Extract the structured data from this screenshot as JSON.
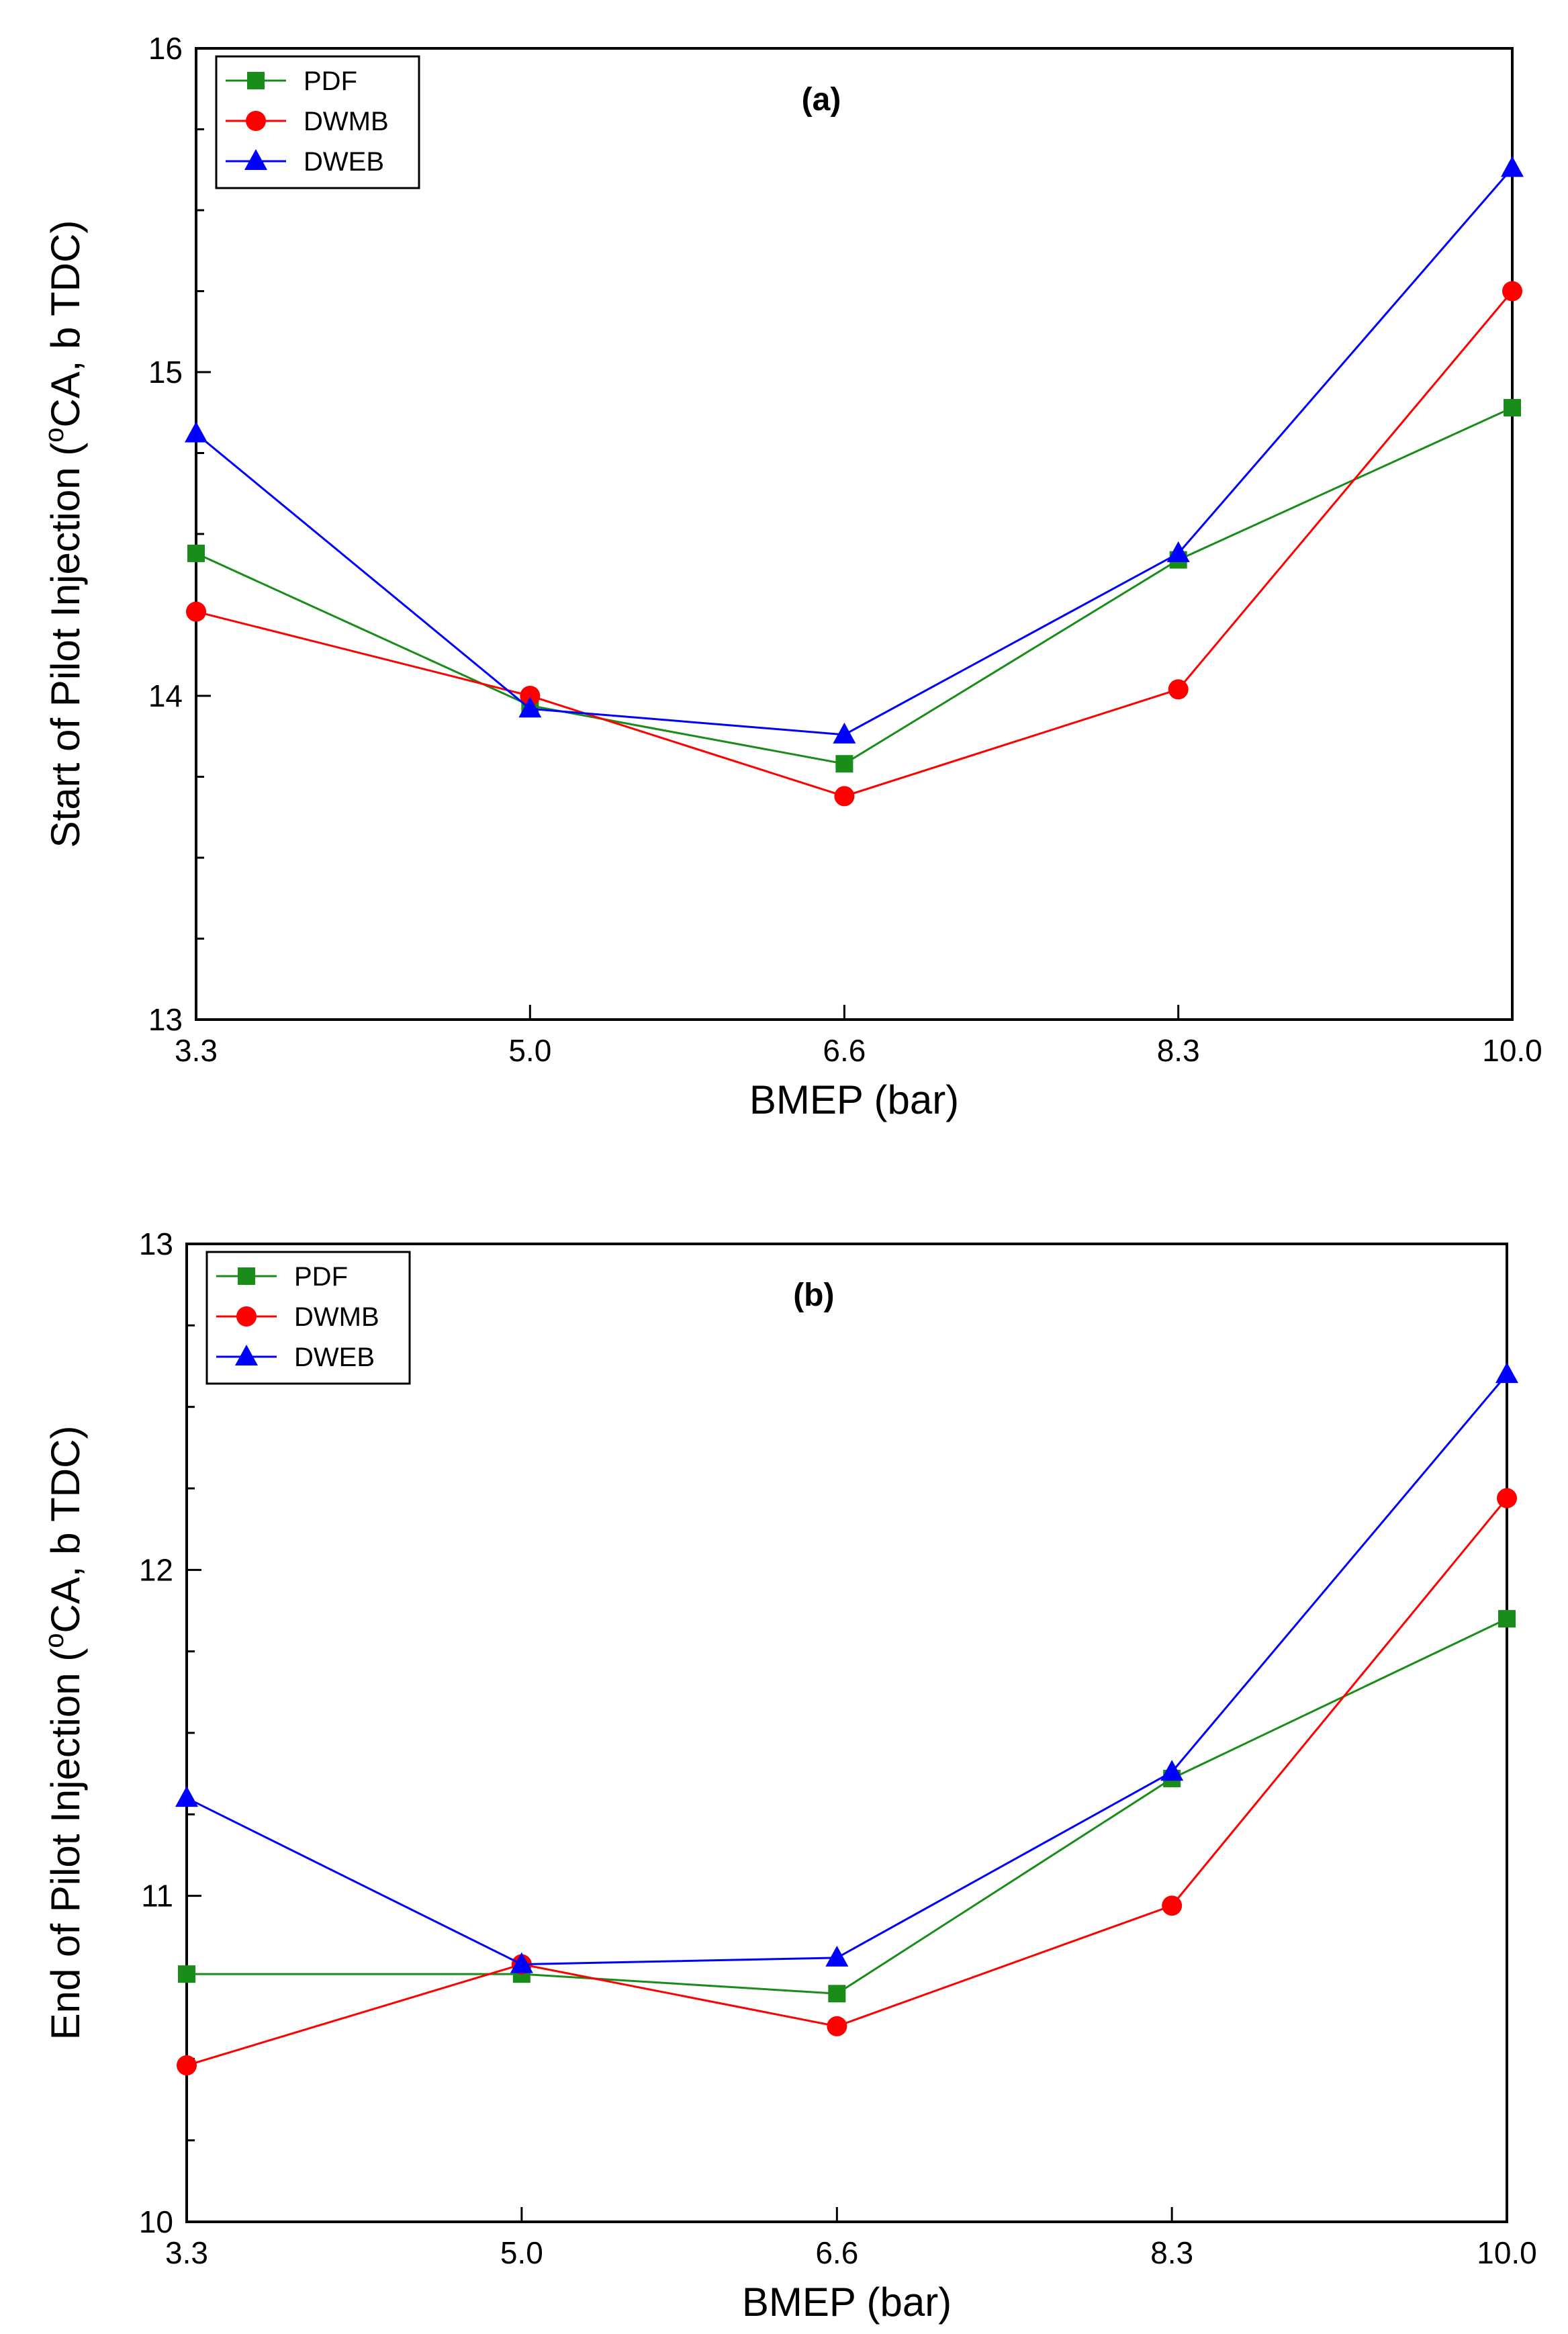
{
  "chart_data": [
    {
      "type": "line",
      "panel_label": "(a)",
      "xlabel": "BMEP (bar)",
      "ylabel": "Start of Pilot Injection (oCA, b TDC)",
      "ylabel_parts": {
        "before": "Start of Pilot Injection (",
        "sup": "o",
        "after": "CA, b TDC)"
      },
      "x": [
        3.3,
        5.0,
        6.6,
        8.3,
        10.0
      ],
      "x_tick_labels": [
        "3.3",
        "5.0",
        "6.6",
        "8.3",
        "10.0"
      ],
      "ylim": [
        13,
        16
      ],
      "y_ticks": [
        13,
        14,
        15,
        16
      ],
      "y_tick_labels": [
        "13",
        "14",
        "15",
        "16"
      ],
      "legend_position": "top-left",
      "series": [
        {
          "name": "PDF",
          "color": "#1a8c1a",
          "marker": "square",
          "values": [
            14.44,
            13.97,
            13.79,
            14.42,
            14.89
          ]
        },
        {
          "name": "DWMB",
          "color": "#ff0000",
          "marker": "circle",
          "values": [
            14.26,
            14.0,
            13.69,
            14.02,
            15.25
          ]
        },
        {
          "name": "DWEB",
          "color": "#0000ff",
          "marker": "triangle",
          "values": [
            14.81,
            13.96,
            13.88,
            14.44,
            15.63
          ]
        }
      ]
    },
    {
      "type": "line",
      "panel_label": "(b)",
      "xlabel": "BMEP (bar)",
      "ylabel": "End of Pilot Injection (oCA, b TDC)",
      "ylabel_parts": {
        "before": "End of Pilot Injection (",
        "sup": "o",
        "after": "CA, b TDC)"
      },
      "x": [
        3.3,
        5.0,
        6.6,
        8.3,
        10.0
      ],
      "x_tick_labels": [
        "3.3",
        "5.0",
        "6.6",
        "8.3",
        "10.0"
      ],
      "ylim": [
        10,
        13
      ],
      "y_ticks": [
        10,
        11,
        12,
        13
      ],
      "y_tick_labels": [
        "10",
        "11",
        "12",
        "13"
      ],
      "legend_position": "top-left",
      "series": [
        {
          "name": "PDF",
          "color": "#1a8c1a",
          "marker": "square",
          "values": [
            10.76,
            10.76,
            10.7,
            11.36,
            11.85
          ]
        },
        {
          "name": "DWMB",
          "color": "#ff0000",
          "marker": "circle",
          "values": [
            10.48,
            10.79,
            10.6,
            10.97,
            12.22
          ]
        },
        {
          "name": "DWEB",
          "color": "#0000ff",
          "marker": "triangle",
          "values": [
            11.3,
            10.79,
            10.81,
            11.38,
            12.6
          ]
        }
      ]
    }
  ]
}
